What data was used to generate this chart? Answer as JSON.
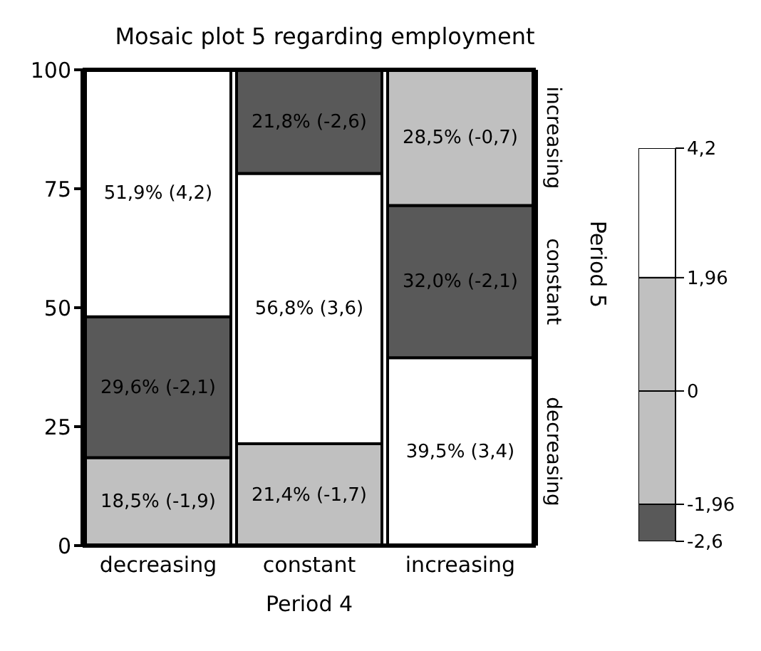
{
  "chart_data": [
    {
      "type": "bar",
      "stacked": true,
      "title": "Mosaic plot 5 regarding employment",
      "xlabel": "Period 4",
      "y2label": "Period 5",
      "categories": [
        "decreasing",
        "constant",
        "increasing"
      ],
      "ylim": [
        0,
        100
      ],
      "yticks": [
        0,
        25,
        50,
        75,
        100
      ],
      "series": [
        {
          "name": "decreasing",
          "values": [
            18.5,
            21.4,
            39.5
          ],
          "colors": [
            "#c0c0c0",
            "#c0c0c0",
            "#ffffff"
          ],
          "value_labels": [
            "18,5% (-1,9)",
            "21,4% (-1,7)",
            "39,5% (3,4)"
          ]
        },
        {
          "name": "constant",
          "values": [
            29.6,
            56.8,
            32.0
          ],
          "colors": [
            "#595959",
            "#ffffff",
            "#595959"
          ],
          "value_labels": [
            "29,6% (-2,1)",
            "56,8% (3,6)",
            "32,0% (-2,1)"
          ]
        },
        {
          "name": "increasing",
          "values": [
            51.9,
            21.8,
            28.5
          ],
          "colors": [
            "#ffffff",
            "#595959",
            "#c0c0c0"
          ],
          "value_labels": [
            "51,9% (4,2)",
            "21,8% (-2,6)",
            "28,5% (-0,7)"
          ]
        }
      ],
      "grid": false,
      "legend": false
    },
    {
      "type": "bar",
      "stacked": true,
      "categories": [
        null
      ],
      "ylim": [
        -2.6,
        4.2
      ],
      "yticks": [
        {
          "value": -2.6,
          "label": "-2,6"
        },
        {
          "value": -1.96,
          "label": "-1,96"
        },
        0,
        {
          "value": 1.96,
          "label": "1,96"
        },
        {
          "value": 4.2,
          "label": "4,2"
        }
      ],
      "series": [
        {
          "color": "#c0c0c0",
          "values": [
            -1.96
          ]
        },
        {
          "color": "#595959",
          "values": [
            -0.64
          ]
        },
        {
          "color": "#c0c0c0",
          "values": [
            1.96
          ]
        },
        {
          "color": "#ffffff",
          "values": [
            2.24
          ]
        }
      ],
      "grid": false,
      "legend": false
    }
  ]
}
